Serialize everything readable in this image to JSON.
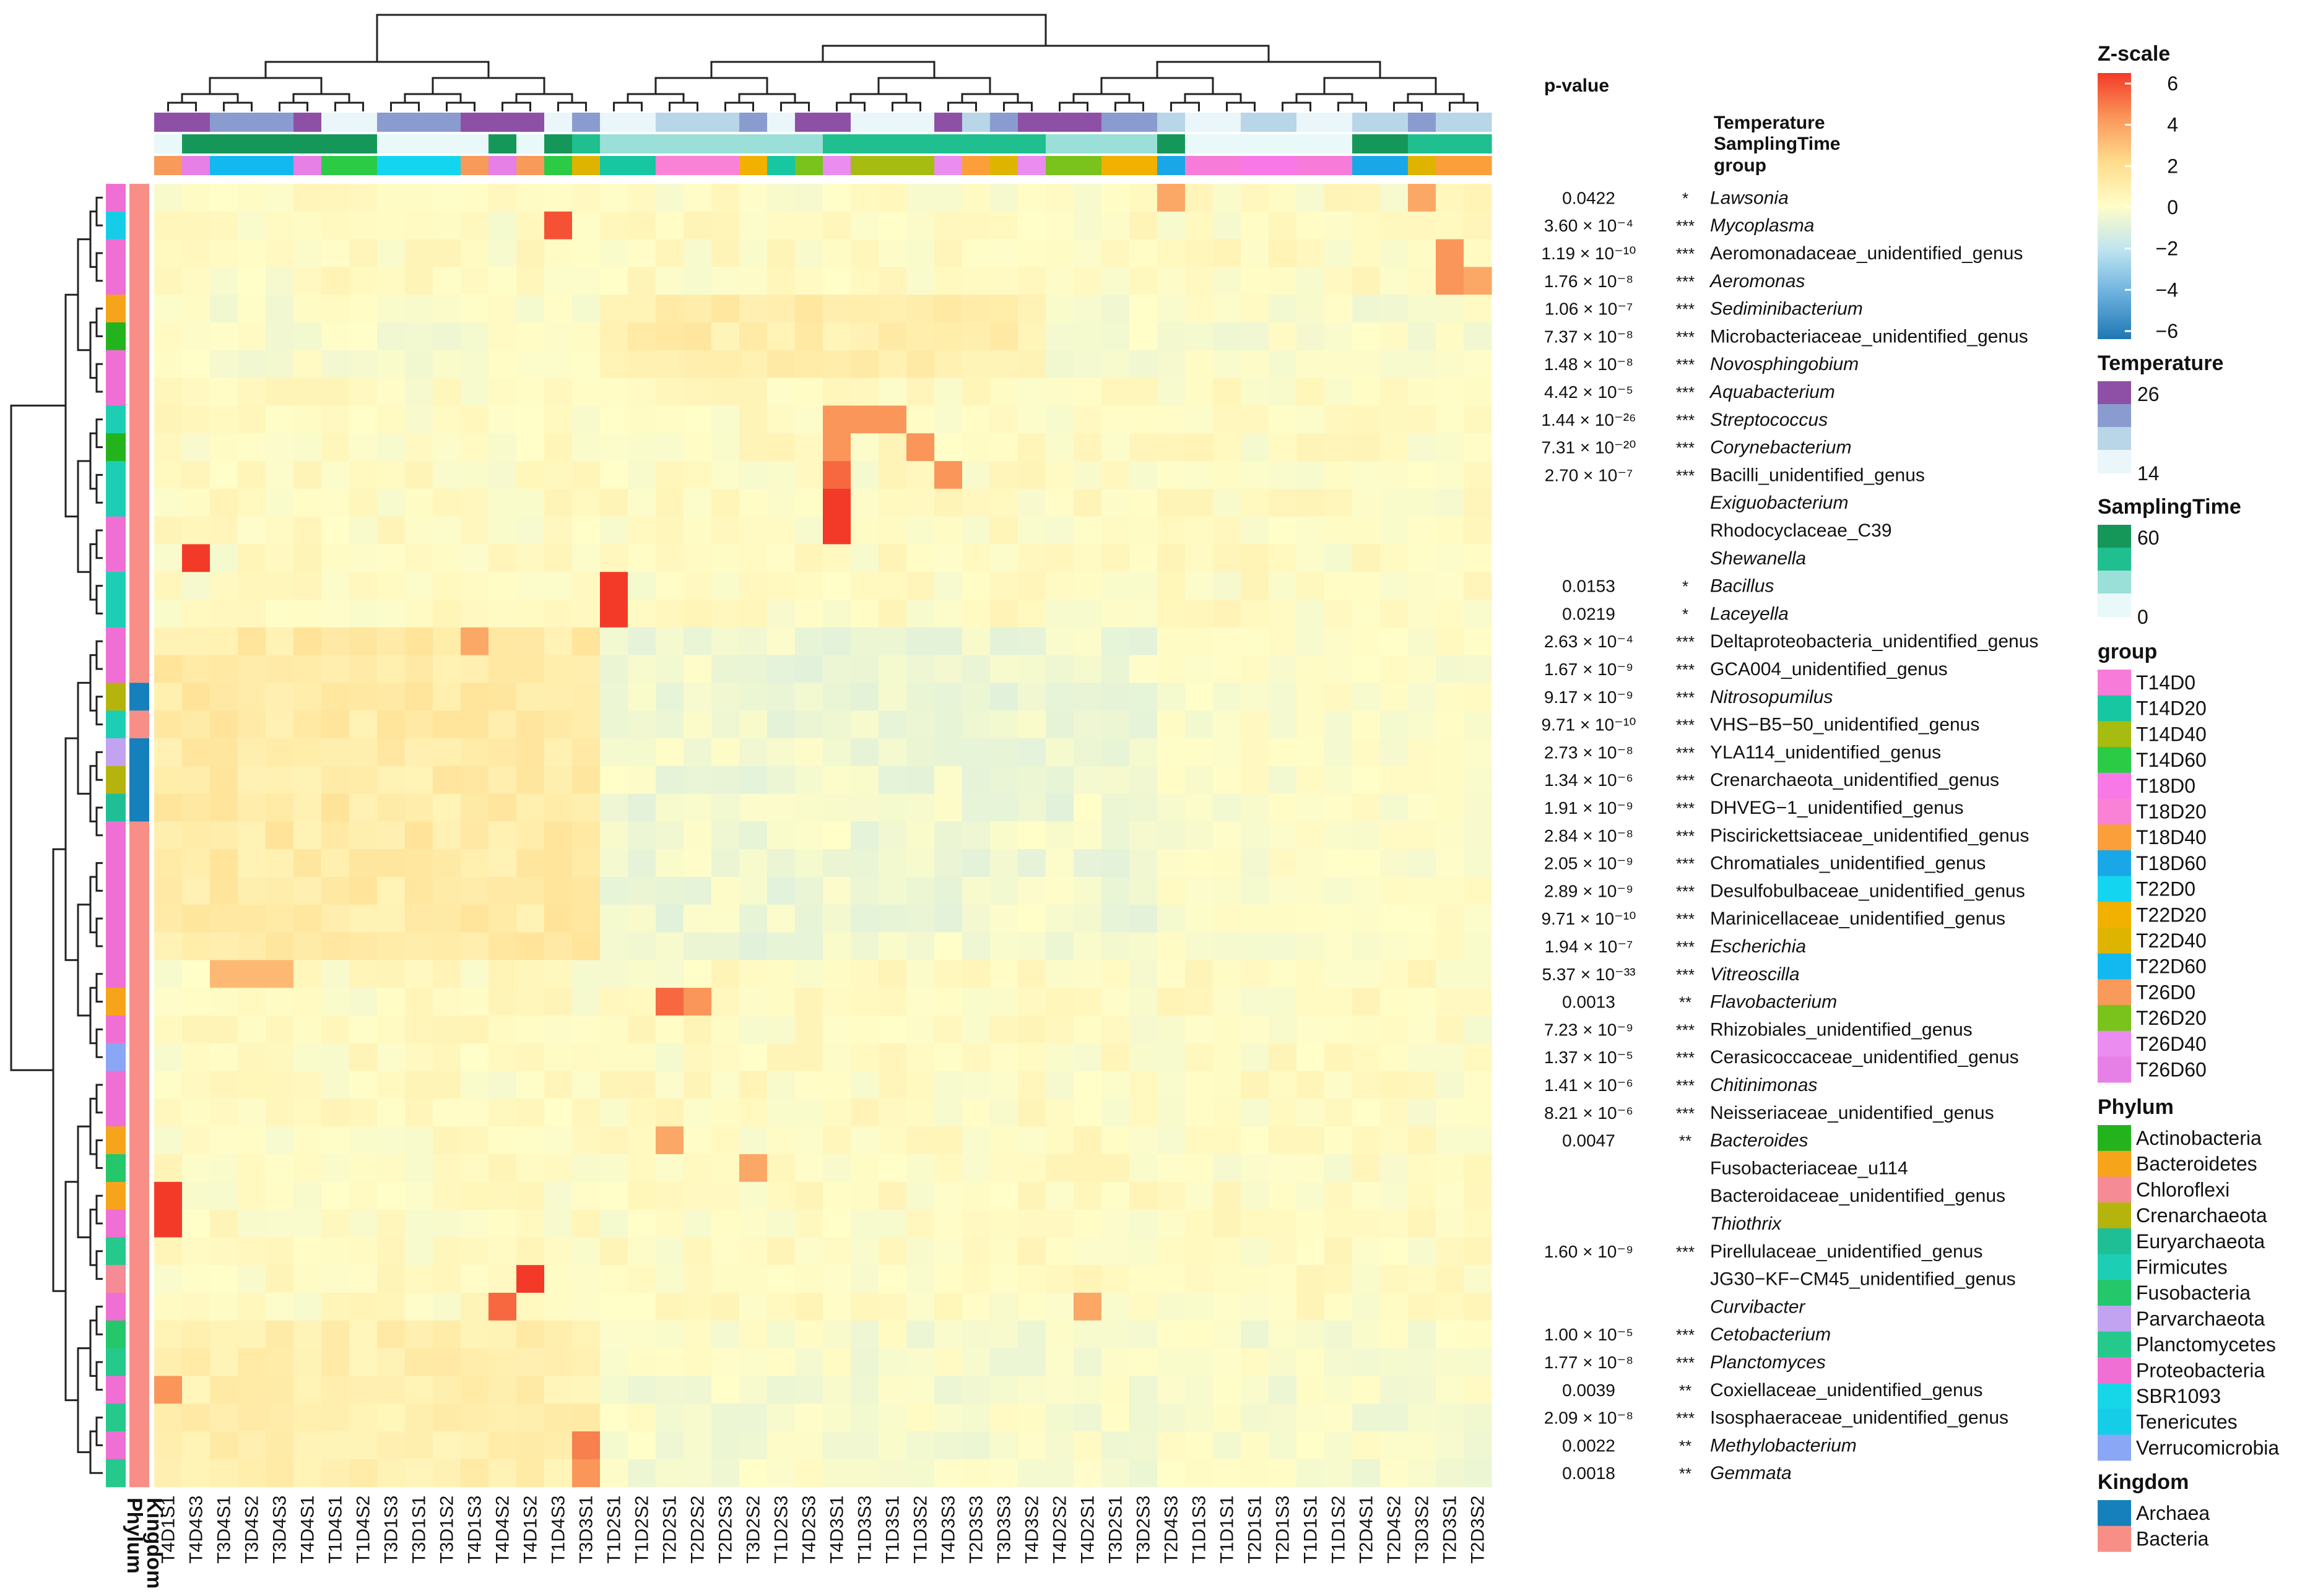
{
  "chart_data": {
    "type": "heatmap",
    "columns": [
      "T4D1S1",
      "T4D4S3",
      "T3D4S1",
      "T3D4S2",
      "T3D4S3",
      "T4D4S1",
      "T1D4S1",
      "T1D4S2",
      "T3D1S3",
      "T3D1S1",
      "T3D1S2",
      "T4D1S3",
      "T4D4S2",
      "T4D1S2",
      "T1D4S3",
      "T3D3S1",
      "T1D2S1",
      "T1D2S2",
      "T2D2S1",
      "T2D2S2",
      "T2D2S3",
      "T3D2S2",
      "T1D2S3",
      "T4D2S3",
      "T4D3S1",
      "T1D3S3",
      "T1D3S1",
      "T1D3S2",
      "T4D3S3",
      "T2D3S3",
      "T3D3S3",
      "T4D3S2",
      "T4D2S2",
      "T4D2S1",
      "T3D2S1",
      "T3D2S3",
      "T2D4S3",
      "T1D1S3",
      "T1D1S1",
      "T2D1S1",
      "T2D1S3",
      "T1D1S1",
      "T1D1S2",
      "T2D4S1",
      "T2D4S2",
      "T3D3S2",
      "T2D3S1",
      "T2D3S2"
    ],
    "rows": [
      {
        "genus": "Lawsonia",
        "p": "0.0422",
        "sig": "*",
        "italic": true,
        "phylum": "Proteobacteria",
        "kingdom": "Bacteria"
      },
      {
        "genus": "Mycoplasma",
        "p": "3.60 × 10⁻⁴",
        "sig": "***",
        "italic": true,
        "phylum": "Tenericutes",
        "kingdom": "Bacteria"
      },
      {
        "genus": "Aeromonadaceae_unidentified_genus",
        "p": "1.19 × 10⁻¹⁰",
        "sig": "***",
        "italic": false,
        "phylum": "Proteobacteria",
        "kingdom": "Bacteria"
      },
      {
        "genus": "Aeromonas",
        "p": "1.76 × 10⁻⁸",
        "sig": "***",
        "italic": true,
        "phylum": "Proteobacteria",
        "kingdom": "Bacteria"
      },
      {
        "genus": "Sediminibacterium",
        "p": "1.06 × 10⁻⁷",
        "sig": "***",
        "italic": true,
        "phylum": "Bacteroidetes",
        "kingdom": "Bacteria"
      },
      {
        "genus": "Microbacteriaceae_unidentified_genus",
        "p": "7.37 × 10⁻⁸",
        "sig": "***",
        "italic": false,
        "phylum": "Actinobacteria",
        "kingdom": "Bacteria"
      },
      {
        "genus": "Novosphingobium",
        "p": "1.48 × 10⁻⁸",
        "sig": "***",
        "italic": true,
        "phylum": "Proteobacteria",
        "kingdom": "Bacteria"
      },
      {
        "genus": "Aquabacterium",
        "p": "4.42 × 10⁻⁵",
        "sig": "***",
        "italic": true,
        "phylum": "Proteobacteria",
        "kingdom": "Bacteria"
      },
      {
        "genus": "Streptococcus",
        "p": "1.44 × 10⁻²⁶",
        "sig": "***",
        "italic": true,
        "phylum": "Firmicutes",
        "kingdom": "Bacteria"
      },
      {
        "genus": "Corynebacterium",
        "p": "7.31 × 10⁻²⁰",
        "sig": "***",
        "italic": true,
        "phylum": "Actinobacteria",
        "kingdom": "Bacteria"
      },
      {
        "genus": "Bacilli_unidentified_genus",
        "p": "2.70 × 10⁻⁷",
        "sig": "***",
        "italic": false,
        "phylum": "Firmicutes",
        "kingdom": "Bacteria"
      },
      {
        "genus": "Exiguobacterium",
        "p": "",
        "sig": "",
        "italic": true,
        "phylum": "Firmicutes",
        "kingdom": "Bacteria"
      },
      {
        "genus": "Rhodocyclaceae_C39",
        "p": "",
        "sig": "",
        "italic": false,
        "phylum": "Proteobacteria",
        "kingdom": "Bacteria"
      },
      {
        "genus": "Shewanella",
        "p": "",
        "sig": "",
        "italic": true,
        "phylum": "Proteobacteria",
        "kingdom": "Bacteria"
      },
      {
        "genus": "Bacillus",
        "p": "0.0153",
        "sig": "*",
        "italic": true,
        "phylum": "Firmicutes",
        "kingdom": "Bacteria"
      },
      {
        "genus": "Laceyella",
        "p": "0.0219",
        "sig": "*",
        "italic": true,
        "phylum": "Firmicutes",
        "kingdom": "Bacteria"
      },
      {
        "genus": "Deltaproteobacteria_unidentified_genus",
        "p": "2.63 × 10⁻⁴",
        "sig": "***",
        "italic": false,
        "phylum": "Proteobacteria",
        "kingdom": "Bacteria"
      },
      {
        "genus": "GCA004_unidentified_genus",
        "p": "1.67 × 10⁻⁹",
        "sig": "***",
        "italic": false,
        "phylum": "Proteobacteria",
        "kingdom": "Bacteria"
      },
      {
        "genus": "Nitrosopumilus",
        "p": "9.17 × 10⁻⁹",
        "sig": "***",
        "italic": true,
        "phylum": "Crenarchaeota",
        "kingdom": "Archaea"
      },
      {
        "genus": "VHS−B5−50_unidentified_genus",
        "p": "9.71 × 10⁻¹⁰",
        "sig": "***",
        "italic": false,
        "phylum": "Firmicutes",
        "kingdom": "Bacteria"
      },
      {
        "genus": "YLA114_unidentified_genus",
        "p": "2.73 × 10⁻⁸",
        "sig": "***",
        "italic": false,
        "phylum": "Parvarchaeota",
        "kingdom": "Archaea"
      },
      {
        "genus": "Crenarchaeota_unidentified_genus",
        "p": "1.34 × 10⁻⁶",
        "sig": "***",
        "italic": false,
        "phylum": "Crenarchaeota",
        "kingdom": "Archaea"
      },
      {
        "genus": "DHVEG−1_unidentified_genus",
        "p": "1.91 × 10⁻⁹",
        "sig": "***",
        "italic": false,
        "phylum": "Euryarchaeota",
        "kingdom": "Archaea"
      },
      {
        "genus": "Piscirickettsiaceae_unidentified_genus",
        "p": "2.84 × 10⁻⁸",
        "sig": "***",
        "italic": false,
        "phylum": "Proteobacteria",
        "kingdom": "Bacteria"
      },
      {
        "genus": "Chromatiales_unidentified_genus",
        "p": "2.05 × 10⁻⁹",
        "sig": "***",
        "italic": false,
        "phylum": "Proteobacteria",
        "kingdom": "Bacteria"
      },
      {
        "genus": "Desulfobulbaceae_unidentified_genus",
        "p": "2.89 × 10⁻⁹",
        "sig": "***",
        "italic": false,
        "phylum": "Proteobacteria",
        "kingdom": "Bacteria"
      },
      {
        "genus": "Marinicellaceae_unidentified_genus",
        "p": "9.71 × 10⁻¹⁰",
        "sig": "***",
        "italic": false,
        "phylum": "Proteobacteria",
        "kingdom": "Bacteria"
      },
      {
        "genus": "Escherichia",
        "p": "1.94 × 10⁻⁷",
        "sig": "***",
        "italic": true,
        "phylum": "Proteobacteria",
        "kingdom": "Bacteria"
      },
      {
        "genus": "Vitreoscilla",
        "p": "5.37 × 10⁻³³",
        "sig": "***",
        "italic": true,
        "phylum": "Proteobacteria",
        "kingdom": "Bacteria"
      },
      {
        "genus": "Flavobacterium",
        "p": "0.0013",
        "sig": "**",
        "italic": true,
        "phylum": "Bacteroidetes",
        "kingdom": "Bacteria"
      },
      {
        "genus": "Rhizobiales_unidentified_genus",
        "p": "7.23 × 10⁻⁹",
        "sig": "***",
        "italic": false,
        "phylum": "Proteobacteria",
        "kingdom": "Bacteria"
      },
      {
        "genus": "Cerasicoccaceae_unidentified_genus",
        "p": "1.37 × 10⁻⁵",
        "sig": "***",
        "italic": false,
        "phylum": "Verrucomicrobia",
        "kingdom": "Bacteria"
      },
      {
        "genus": "Chitinimonas",
        "p": "1.41 × 10⁻⁶",
        "sig": "***",
        "italic": true,
        "phylum": "Proteobacteria",
        "kingdom": "Bacteria"
      },
      {
        "genus": "Neisseriaceae_unidentified_genus",
        "p": "8.21 × 10⁻⁶",
        "sig": "***",
        "italic": false,
        "phylum": "Proteobacteria",
        "kingdom": "Bacteria"
      },
      {
        "genus": "Bacteroides",
        "p": "0.0047",
        "sig": "**",
        "italic": true,
        "phylum": "Bacteroidetes",
        "kingdom": "Bacteria"
      },
      {
        "genus": "Fusobacteriaceae_u114",
        "p": "",
        "sig": "",
        "italic": false,
        "phylum": "Fusobacteria",
        "kingdom": "Bacteria"
      },
      {
        "genus": "Bacteroidaceae_unidentified_genus",
        "p": "",
        "sig": "",
        "italic": false,
        "phylum": "Bacteroidetes",
        "kingdom": "Bacteria"
      },
      {
        "genus": "Thiothrix",
        "p": "",
        "sig": "",
        "italic": true,
        "phylum": "Proteobacteria",
        "kingdom": "Bacteria"
      },
      {
        "genus": "Pirellulaceae_unidentified_genus",
        "p": "1.60 × 10⁻⁹",
        "sig": "***",
        "italic": false,
        "phylum": "Planctomycetes",
        "kingdom": "Bacteria"
      },
      {
        "genus": "JG30−KF−CM45_unidentified_genus",
        "p": "",
        "sig": "",
        "italic": false,
        "phylum": "Chloroflexi",
        "kingdom": "Bacteria"
      },
      {
        "genus": "Curvibacter",
        "p": "",
        "sig": "",
        "italic": true,
        "phylum": "Proteobacteria",
        "kingdom": "Bacteria"
      },
      {
        "genus": "Cetobacterium",
        "p": "1.00 × 10⁻⁵",
        "sig": "***",
        "italic": true,
        "phylum": "Fusobacteria",
        "kingdom": "Bacteria"
      },
      {
        "genus": "Planctomyces",
        "p": "1.77 × 10⁻⁸",
        "sig": "***",
        "italic": true,
        "phylum": "Planctomycetes",
        "kingdom": "Bacteria"
      },
      {
        "genus": "Coxiellaceae_unidentified_genus",
        "p": "0.0039",
        "sig": "**",
        "italic": false,
        "phylum": "Proteobacteria",
        "kingdom": "Bacteria"
      },
      {
        "genus": "Isosphaeraceae_unidentified_genus",
        "p": "2.09 × 10⁻⁸",
        "sig": "***",
        "italic": false,
        "phylum": "Planctomycetes",
        "kingdom": "Bacteria"
      },
      {
        "genus": "Methylobacterium",
        "p": "0.0022",
        "sig": "**",
        "italic": true,
        "phylum": "Proteobacteria",
        "kingdom": "Bacteria"
      },
      {
        "genus": "Gemmata",
        "p": "0.0018",
        "sig": "**",
        "italic": true,
        "phylum": "Planctomycetes",
        "kingdom": "Bacteria"
      }
    ],
    "zscale_range": [
      -6,
      6
    ],
    "zscale_ticks": [
      6,
      4,
      2,
      0,
      -2,
      -4,
      -6
    ],
    "hotspots": [
      {
        "row": "Lawsonia",
        "col": "T2D4S3",
        "z": 3.5
      },
      {
        "row": "Lawsonia",
        "col": "T3D3S2",
        "z": 3.5
      },
      {
        "row": "Mycoplasma",
        "col": "T1D4S3",
        "z": 5.5
      },
      {
        "row": "Aeromonadaceae_unidentified_genus",
        "col": "T2D3S1",
        "z": 4
      },
      {
        "row": "Aeromonas",
        "col": "T2D3S1",
        "z": 4
      },
      {
        "row": "Aeromonas",
        "col": "T2D3S2",
        "z": 3.5
      },
      {
        "row": "Streptococcus",
        "col": "T4D3S1",
        "z": 4
      },
      {
        "row": "Streptococcus",
        "col": "T1D3S3",
        "z": 4
      },
      {
        "row": "Streptococcus",
        "col": "T1D3S1",
        "z": 4
      },
      {
        "row": "Corynebacterium",
        "col": "T4D3S1",
        "z": 4
      },
      {
        "row": "Corynebacterium",
        "col": "T1D3S2",
        "z": 4
      },
      {
        "row": "Bacilli_unidentified_genus",
        "col": "T4D3S1",
        "z": 5
      },
      {
        "row": "Bacilli_unidentified_genus",
        "col": "T4D3S3",
        "z": 4
      },
      {
        "row": "Exiguobacterium",
        "col": "T4D3S1",
        "z": 6
      },
      {
        "row": "Rhodocyclaceae_C39",
        "col": "T4D3S1",
        "z": 6
      },
      {
        "row": "Shewanella",
        "col": "T4D4S3",
        "z": 6
      },
      {
        "row": "Bacillus",
        "col": "T1D2S1",
        "z": 6
      },
      {
        "row": "Laceyella",
        "col": "T1D2S1",
        "z": 6
      },
      {
        "row": "Deltaproteobacteria_unidentified_genus",
        "col": "T4D1S3",
        "z": 3.5
      },
      {
        "row": "Vitreoscilla",
        "col": "T3D4S1",
        "z": 3
      },
      {
        "row": "Vitreoscilla",
        "col": "T3D4S2",
        "z": 3
      },
      {
        "row": "Vitreoscilla",
        "col": "T3D4S3",
        "z": 3
      },
      {
        "row": "Flavobacterium",
        "col": "T2D2S1",
        "z": 5
      },
      {
        "row": "Flavobacterium",
        "col": "T2D2S2",
        "z": 4
      },
      {
        "row": "Bacteroides",
        "col": "T2D2S1",
        "z": 3.5
      },
      {
        "row": "Fusobacteriaceae_u114",
        "col": "T3D2S2",
        "z": 3.5
      },
      {
        "row": "Bacteroidaceae_unidentified_genus",
        "col": "T4D1S1",
        "z": 6
      },
      {
        "row": "Thiothrix",
        "col": "T4D1S1",
        "z": 6
      },
      {
        "row": "JG30−KF−CM45_unidentified_genus",
        "col": "T4D1S2",
        "z": 6
      },
      {
        "row": "Curvibacter",
        "col": "T4D4S2",
        "z": 5
      },
      {
        "row": "Curvibacter",
        "col": "T4D2S1",
        "z": 3.5
      },
      {
        "row": "Coxiellaceae_unidentified_genus",
        "col": "T4D1S1",
        "z": 4
      },
      {
        "row": "Methylobacterium",
        "col": "T3D3S1",
        "z": 4.5
      },
      {
        "row": "Gemmata",
        "col": "T3D3S1",
        "z": 4
      }
    ],
    "column_annotations": [
      "Temperature",
      "SamplingTime",
      "group"
    ],
    "row_annotations": [
      "Phylum",
      "Kingdom"
    ],
    "pvalue_header": "p-value",
    "annotation_header": [
      "Temperature",
      "SamplingTime",
      "group"
    ]
  },
  "legends": {
    "zscale": {
      "title": "Z-scale",
      "ticks": [
        "6",
        "4",
        "2",
        "0",
        "−2",
        "−4",
        "−6"
      ]
    },
    "temperature": {
      "title": "Temperature",
      "high": "26",
      "low": "14",
      "colors": [
        "#8e50a6",
        "#8a9ccf",
        "#b8d6e8",
        "#eaf6fa"
      ]
    },
    "samplingtime": {
      "title": "SamplingTime",
      "high": "60",
      "low": "0",
      "colors": [
        "#16975a",
        "#1fbf90",
        "#9adfd8",
        "#e9f8f8"
      ]
    },
    "group": {
      "title": "group",
      "items": [
        {
          "label": "T14D0",
          "color": "#f77bd9"
        },
        {
          "label": "T14D20",
          "color": "#17c7a1"
        },
        {
          "label": "T14D40",
          "color": "#a6bc10"
        },
        {
          "label": "T14D60",
          "color": "#2bcb46"
        },
        {
          "label": "T18D0",
          "color": "#f878e8"
        },
        {
          "label": "T18D20",
          "color": "#fa82d6"
        },
        {
          "label": "T18D40",
          "color": "#fb9f3b"
        },
        {
          "label": "T18D60",
          "color": "#1aa7e8"
        },
        {
          "label": "T22D0",
          "color": "#14d5f0"
        },
        {
          "label": "T22D20",
          "color": "#f2b000"
        },
        {
          "label": "T22D40",
          "color": "#dfb400"
        },
        {
          "label": "T22D60",
          "color": "#12b8f0"
        },
        {
          "label": "T26D0",
          "color": "#f79a5a"
        },
        {
          "label": "T26D20",
          "color": "#7ac21c"
        },
        {
          "label": "T26D40",
          "color": "#ea8cf0"
        },
        {
          "label": "T26D60",
          "color": "#e67fe6"
        }
      ]
    },
    "phylum": {
      "title": "Phylum",
      "items": [
        {
          "label": "Actinobacteria",
          "color": "#23b41d"
        },
        {
          "label": "Bacteroidetes",
          "color": "#f6a51a"
        },
        {
          "label": "Chloroflexi",
          "color": "#f58b95"
        },
        {
          "label": "Crenarchaeota",
          "color": "#b5b40c"
        },
        {
          "label": "Euryarchaeota",
          "color": "#1fbf96"
        },
        {
          "label": "Firmicutes",
          "color": "#1ccfb4"
        },
        {
          "label": "Fusobacteria",
          "color": "#24c76a"
        },
        {
          "label": "Parvarchaeota",
          "color": "#c2a3f1"
        },
        {
          "label": "Planctomycetes",
          "color": "#25c98b"
        },
        {
          "label": "Proteobacteria",
          "color": "#f06fd4"
        },
        {
          "label": "SBR1093",
          "color": "#16d7e8"
        },
        {
          "label": "Tenericutes",
          "color": "#16cde8"
        },
        {
          "label": "Verrucomicrobia",
          "color": "#8aa7f5"
        }
      ]
    },
    "kingdom": {
      "title": "Kingdom",
      "items": [
        {
          "label": "Archaea",
          "color": "#1680bd"
        },
        {
          "label": "Bacteria",
          "color": "#f78f86"
        }
      ]
    }
  },
  "side_labels": {
    "phylum": "Phylum",
    "kingdom": "Kingdom"
  }
}
